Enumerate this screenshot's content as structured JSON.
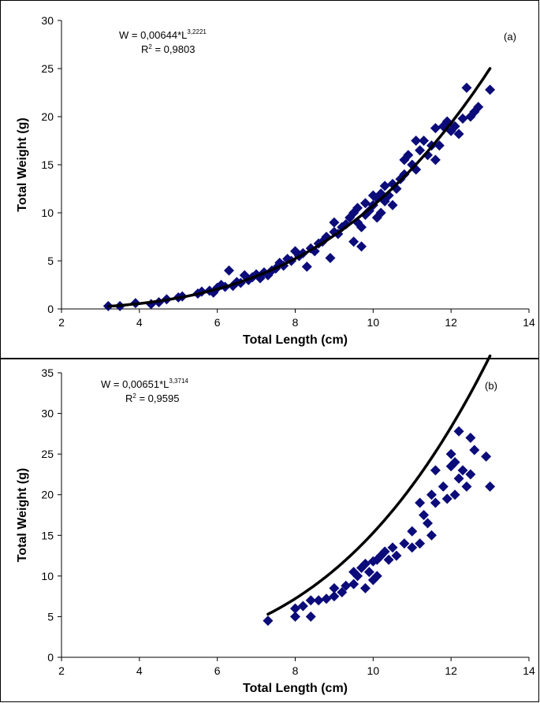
{
  "chart_data": [
    {
      "type": "scatter",
      "panel_label": "(a)",
      "xlabel": "Total Length (cm)",
      "ylabel": "Total Weight (g)",
      "xlim": [
        2,
        14
      ],
      "ylim": [
        0,
        30
      ],
      "xticks": [
        "2",
        "4",
        "6",
        "8",
        "10",
        "12",
        "14"
      ],
      "yticks": [
        "0",
        "5",
        "10",
        "15",
        "20",
        "25",
        "30"
      ],
      "equation": {
        "prefix": "W = 0,00644*L",
        "exponent": "3,2221",
        "r2_prefix": "R",
        "r2_sup": "2",
        "r2_value": " = 0,9803"
      },
      "fit": {
        "a": 0.00644,
        "b": 3.2221,
        "x_range": [
          3.2,
          13.0
        ]
      },
      "marker_color": "#0b0b7a",
      "line_color": "#000000",
      "points": [
        [
          3.2,
          0.3
        ],
        [
          3.5,
          0.3
        ],
        [
          3.9,
          0.6
        ],
        [
          4.3,
          0.5
        ],
        [
          4.5,
          0.7
        ],
        [
          4.7,
          1.0
        ],
        [
          5.0,
          1.2
        ],
        [
          5.1,
          1.3
        ],
        [
          5.5,
          1.6
        ],
        [
          5.6,
          1.8
        ],
        [
          5.8,
          1.9
        ],
        [
          5.9,
          1.7
        ],
        [
          6.0,
          2.2
        ],
        [
          6.1,
          2.5
        ],
        [
          6.2,
          2.3
        ],
        [
          6.3,
          4.0
        ],
        [
          6.4,
          2.4
        ],
        [
          6.5,
          2.8
        ],
        [
          6.6,
          2.7
        ],
        [
          6.7,
          3.5
        ],
        [
          6.8,
          3.0
        ],
        [
          6.9,
          3.3
        ],
        [
          7.0,
          3.6
        ],
        [
          7.1,
          3.2
        ],
        [
          7.2,
          3.8
        ],
        [
          7.3,
          3.5
        ],
        [
          7.4,
          4.0
        ],
        [
          7.5,
          4.2
        ],
        [
          7.6,
          4.8
        ],
        [
          7.7,
          4.5
        ],
        [
          7.8,
          5.2
        ],
        [
          7.9,
          5.0
        ],
        [
          8.0,
          6.0
        ],
        [
          8.1,
          5.5
        ],
        [
          8.2,
          5.8
        ],
        [
          8.3,
          4.4
        ],
        [
          8.4,
          6.3
        ],
        [
          8.5,
          6.0
        ],
        [
          8.6,
          6.8
        ],
        [
          8.7,
          7.0
        ],
        [
          8.8,
          7.5
        ],
        [
          8.9,
          5.3
        ],
        [
          9.0,
          8.0
        ],
        [
          9.0,
          9.0
        ],
        [
          9.1,
          7.8
        ],
        [
          9.2,
          8.5
        ],
        [
          9.3,
          8.8
        ],
        [
          9.4,
          9.5
        ],
        [
          9.5,
          7.0
        ],
        [
          9.5,
          10.0
        ],
        [
          9.6,
          9.0
        ],
        [
          9.6,
          10.5
        ],
        [
          9.7,
          6.5
        ],
        [
          9.7,
          8.5
        ],
        [
          9.8,
          9.8
        ],
        [
          9.8,
          11.0
        ],
        [
          9.9,
          10.2
        ],
        [
          10.0,
          10.8
        ],
        [
          10.0,
          11.8
        ],
        [
          10.1,
          11.5
        ],
        [
          10.1,
          9.5
        ],
        [
          10.2,
          12.0
        ],
        [
          10.2,
          10.0
        ],
        [
          10.3,
          11.2
        ],
        [
          10.3,
          12.8
        ],
        [
          10.4,
          11.8
        ],
        [
          10.5,
          13.0
        ],
        [
          10.5,
          10.8
        ],
        [
          10.6,
          12.5
        ],
        [
          10.7,
          13.5
        ],
        [
          10.8,
          14.0
        ],
        [
          10.8,
          15.5
        ],
        [
          10.9,
          16.0
        ],
        [
          11.0,
          15.0
        ],
        [
          11.1,
          14.5
        ],
        [
          11.1,
          17.5
        ],
        [
          11.2,
          16.5
        ],
        [
          11.3,
          17.5
        ],
        [
          11.4,
          16.0
        ],
        [
          11.5,
          17.0
        ],
        [
          11.6,
          15.5
        ],
        [
          11.6,
          18.8
        ],
        [
          11.7,
          17.0
        ],
        [
          11.8,
          19.0
        ],
        [
          11.9,
          19.5
        ],
        [
          12.0,
          18.5
        ],
        [
          12.1,
          19.0
        ],
        [
          12.2,
          18.2
        ],
        [
          12.3,
          19.8
        ],
        [
          12.4,
          23.0
        ],
        [
          12.5,
          20.0
        ],
        [
          12.6,
          20.5
        ],
        [
          12.7,
          21.0
        ],
        [
          13.0,
          22.8
        ]
      ]
    },
    {
      "type": "scatter",
      "panel_label": "(b)",
      "xlabel": "Total Length (cm)",
      "ylabel": "Total Weight (g)",
      "xlim": [
        2,
        14
      ],
      "ylim": [
        0,
        35
      ],
      "xticks": [
        "2",
        "4",
        "6",
        "8",
        "10",
        "12",
        "14"
      ],
      "yticks": [
        "0",
        "5",
        "10",
        "15",
        "20",
        "25",
        "30",
        "35"
      ],
      "equation": {
        "prefix": "W = 0,00651*L",
        "exponent": "3,3714",
        "r2_prefix": "R",
        "r2_sup": "2",
        "r2_value": " = 0,9595"
      },
      "fit": {
        "a": 0.00651,
        "b": 3.3714,
        "x_range": [
          7.3,
          13.0
        ]
      },
      "marker_color": "#0b0b7a",
      "line_color": "#000000",
      "points": [
        [
          7.3,
          4.5
        ],
        [
          8.0,
          5.0
        ],
        [
          8.0,
          6.0
        ],
        [
          8.2,
          6.3
        ],
        [
          8.4,
          5.0
        ],
        [
          8.4,
          7.0
        ],
        [
          8.6,
          7.0
        ],
        [
          8.8,
          7.2
        ],
        [
          9.0,
          7.5
        ],
        [
          9.0,
          8.5
        ],
        [
          9.2,
          8.0
        ],
        [
          9.3,
          8.8
        ],
        [
          9.5,
          9.0
        ],
        [
          9.5,
          10.5
        ],
        [
          9.6,
          10.0
        ],
        [
          9.7,
          11.0
        ],
        [
          9.8,
          8.5
        ],
        [
          9.8,
          11.5
        ],
        [
          9.9,
          10.5
        ],
        [
          10.0,
          9.5
        ],
        [
          10.0,
          11.8
        ],
        [
          10.1,
          12.0
        ],
        [
          10.1,
          10.0
        ],
        [
          10.2,
          12.5
        ],
        [
          10.3,
          13.0
        ],
        [
          10.4,
          12.0
        ],
        [
          10.5,
          13.5
        ],
        [
          10.6,
          12.5
        ],
        [
          10.8,
          14.0
        ],
        [
          11.0,
          13.5
        ],
        [
          11.0,
          15.5
        ],
        [
          11.2,
          14.0
        ],
        [
          11.2,
          19.0
        ],
        [
          11.3,
          17.5
        ],
        [
          11.4,
          16.5
        ],
        [
          11.5,
          15.0
        ],
        [
          11.5,
          20.0
        ],
        [
          11.6,
          19.0
        ],
        [
          11.6,
          23.0
        ],
        [
          11.8,
          21.0
        ],
        [
          11.9,
          19.5
        ],
        [
          12.0,
          23.5
        ],
        [
          12.0,
          25.0
        ],
        [
          12.1,
          24.0
        ],
        [
          12.1,
          20.0
        ],
        [
          12.2,
          27.8
        ],
        [
          12.2,
          22.0
        ],
        [
          12.3,
          23.0
        ],
        [
          12.4,
          21.0
        ],
        [
          12.5,
          22.5
        ],
        [
          12.5,
          27.0
        ],
        [
          12.6,
          25.5
        ],
        [
          12.9,
          24.7
        ],
        [
          13.0,
          21.0
        ]
      ]
    }
  ]
}
